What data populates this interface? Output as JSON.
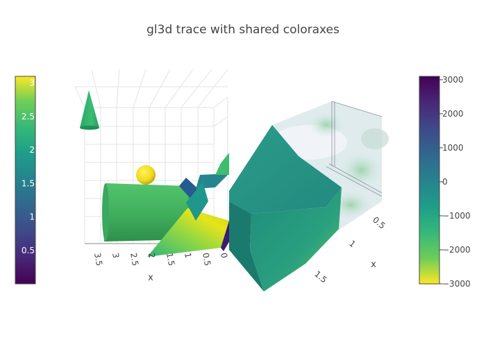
{
  "chart_data": {
    "type": "3d-surface-mesh",
    "title": "gl3d trace with shared coloraxes",
    "scenes": [
      {
        "name": "left",
        "x_axis_label": "x",
        "x_ticks": [
          "3.5",
          "3",
          "2.5",
          "2",
          "1.5",
          "1",
          "0.5",
          "0"
        ],
        "traces": [
          "cone",
          "sphere",
          "cylinder",
          "twisted surface"
        ]
      },
      {
        "name": "right",
        "x_axis_label": "x",
        "x_ticks": [
          "0.5",
          "1",
          "1.5"
        ],
        "traces": [
          "isosurface",
          "volume"
        ]
      }
    ],
    "coloraxes": [
      {
        "name": "left",
        "colorscale": "Viridis",
        "range": [
          0,
          3.1
        ],
        "ticks": [
          "0.5",
          "1",
          "1.5",
          "2",
          "2.5",
          "3"
        ],
        "tick_values": [
          0.5,
          1,
          1.5,
          2,
          2.5,
          3
        ]
      },
      {
        "name": "right",
        "colorscale": "Viridis reversed",
        "range": [
          -3000,
          3100
        ],
        "ticks": [
          "3000",
          "2000",
          "1000",
          "0",
          "−1000",
          "−2000",
          "−3000"
        ],
        "tick_values": [
          3000,
          2000,
          1000,
          0,
          -1000,
          -2000,
          -3000
        ]
      }
    ]
  }
}
